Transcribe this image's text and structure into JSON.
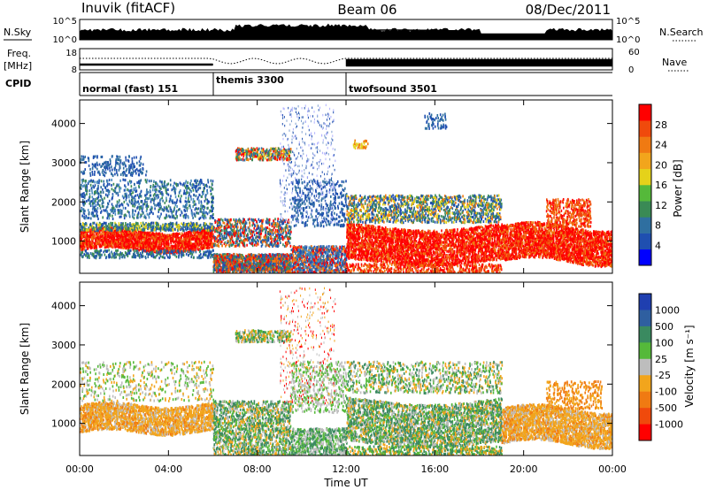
{
  "header": {
    "station": "Inuvik (fitACF)",
    "beam": "Beam 06",
    "date": "08/Dec/2011"
  },
  "left_labels": {
    "nsky": "N.Sky",
    "freq_line1": "Freq.",
    "freq_line2": "[MHz]",
    "cpid": "CPID"
  },
  "right_labels": {
    "nsearch": "N.Search",
    "nave": "Nave"
  },
  "strip_ticks": {
    "noise_left": [
      "10^5",
      "10^0"
    ],
    "noise_right": [
      "10^5",
      "10^0"
    ],
    "freq_left": [
      "18",
      "8"
    ],
    "nave_right": [
      "60",
      "0"
    ]
  },
  "cpid_segments": [
    {
      "label": "normal (fast) 151",
      "start_h": 0
    },
    {
      "label": "themis 3300",
      "start_h": 6
    },
    {
      "label": "twofsound 3501",
      "start_h": 12
    }
  ],
  "colors": {
    "power_scale": [
      "#0000ff",
      "#1f4fb0",
      "#2f6fa0",
      "#3a8a55",
      "#55b93a",
      "#e5d21a",
      "#f2a51c",
      "#f07a12",
      "#f04a0c",
      "#ff0000"
    ],
    "velocity_scale": [
      "#1f3fb0",
      "#2f5fa0",
      "#3a8a60",
      "#55b93a",
      "#bdbdbd",
      "#f2a51c",
      "#f07a12",
      "#f04a0c",
      "#ff0000"
    ]
  },
  "chart_data": [
    {
      "type": "heatmap",
      "panel": "power",
      "ylabel": "Slant Range [km]",
      "yticks": [
        1000,
        2000,
        3000,
        4000
      ],
      "ylim": [
        180,
        4600
      ],
      "colorbar_label": "Power [dB]",
      "colorbar_ticks": [
        "4",
        "8",
        "12",
        "16",
        "20",
        "24",
        "28"
      ],
      "colorbar_range": [
        0,
        32
      ]
    },
    {
      "type": "heatmap",
      "panel": "velocity",
      "ylabel": "Slant Range [km]",
      "yticks": [
        1000,
        2000,
        3000,
        4000
      ],
      "ylim": [
        180,
        4600
      ],
      "colorbar_label": "Velocity [m s⁻¹]",
      "colorbar_ticks": [
        "1000",
        "500",
        "100",
        "25",
        "-25",
        "-100",
        "-500",
        "-1000"
      ]
    }
  ],
  "xaxis": {
    "label": "Time UT",
    "ticks": [
      "00:00",
      "04:00",
      "08:00",
      "12:00",
      "16:00",
      "20:00",
      "00:00"
    ],
    "range_h": [
      0,
      24
    ]
  }
}
